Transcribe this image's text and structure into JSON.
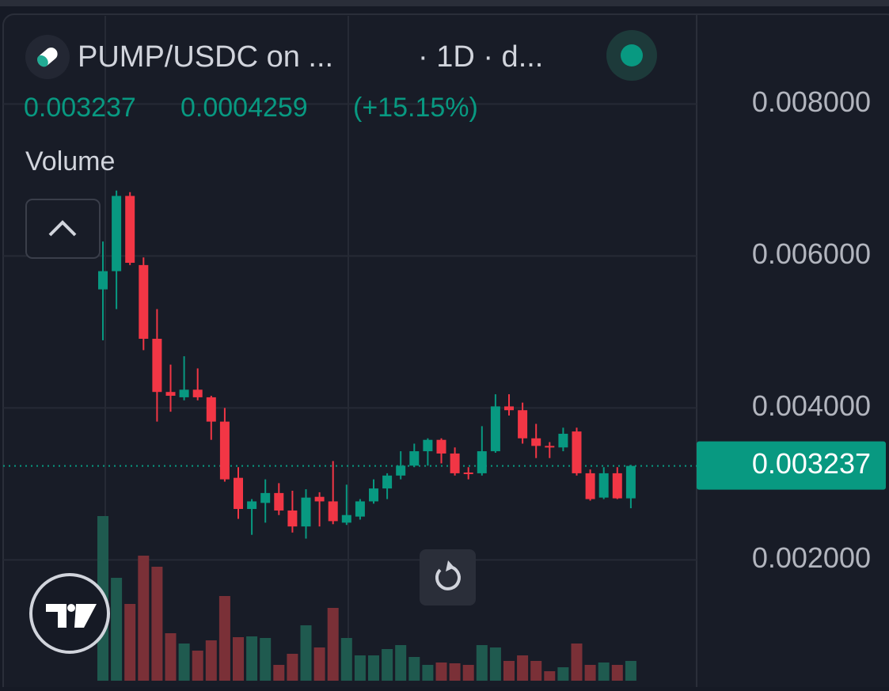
{
  "chart_data": {
    "type": "candlestick",
    "title": "PUMP/USDC on ...",
    "interval": "· 1D · d...",
    "change": 0.0004259,
    "change_percent": "(+15.15%)",
    "volume_label": "Volume",
    "categories": [
      null,
      null,
      null,
      null,
      null,
      null,
      null,
      null,
      null,
      null,
      null,
      null,
      null,
      null,
      null,
      null,
      null,
      null,
      null,
      null,
      null,
      null,
      null,
      null,
      null,
      null,
      null,
      null,
      null,
      null,
      null,
      null,
      null,
      null,
      null,
      null,
      null,
      null,
      null,
      null
    ],
    "open": [
      0.00556,
      0.0058,
      0.00679,
      0.00588,
      0.00491,
      0.00421,
      0.00414,
      0.00424,
      0.00414,
      0.00382,
      0.00308,
      0.00267,
      0.00275,
      0.00288,
      0.00265,
      0.00244,
      0.00283,
      0.00277,
      0.00249,
      0.00257,
      0.00277,
      0.00294,
      0.00311,
      0.00324,
      0.00343,
      0.00358,
      0.0034,
      0.00315,
      0.00314,
      0.00343,
      0.00402,
      0.00397,
      0.0036,
      0.0035,
      0.00348,
      0.00369,
      0.00314,
      0.00282,
      0.00314,
      0.00281
    ],
    "high": [
      0.00619,
      0.00686,
      0.00684,
      0.00598,
      0.0053,
      0.00457,
      0.00468,
      0.00452,
      0.00416,
      0.004,
      0.00322,
      0.0028,
      0.00306,
      0.00301,
      0.00291,
      0.00293,
      0.00289,
      0.0033,
      0.00299,
      0.0028,
      0.00306,
      0.00314,
      0.00343,
      0.00353,
      0.0036,
      0.0036,
      0.00348,
      0.00322,
      0.00376,
      0.00418,
      0.00418,
      0.00407,
      0.00379,
      0.00355,
      0.00374,
      0.00374,
      0.00319,
      0.00322,
      0.00322,
      0.00325
    ],
    "low": [
      0.00489,
      0.0053,
      0.00588,
      0.00476,
      0.00382,
      0.00395,
      0.0041,
      0.0041,
      0.00358,
      0.00303,
      0.00254,
      0.00233,
      0.00249,
      0.00259,
      0.00236,
      0.00228,
      0.00244,
      0.00247,
      0.00246,
      0.00253,
      0.00274,
      0.0028,
      0.00306,
      0.00322,
      0.00324,
      0.00327,
      0.00311,
      0.00306,
      0.00311,
      0.00341,
      0.0039,
      0.00353,
      0.00334,
      0.00334,
      0.00343,
      0.00311,
      0.00278,
      0.0028,
      0.0028,
      0.00268
    ],
    "close": [
      0.0058,
      0.00679,
      0.00591,
      0.00491,
      0.00421,
      0.00416,
      0.00424,
      0.00414,
      0.00382,
      0.00306,
      0.00267,
      0.00277,
      0.00288,
      0.00265,
      0.00244,
      0.00282,
      0.00277,
      0.00251,
      0.00259,
      0.00277,
      0.00294,
      0.00311,
      0.00324,
      0.00343,
      0.00358,
      0.0034,
      0.00314,
      0.00313,
      0.00343,
      0.00402,
      0.00397,
      0.0036,
      0.0035,
      0.00348,
      0.00366,
      0.00314,
      0.0028,
      0.00314,
      0.00281,
      0.003237
    ],
    "volume": [
      208,
      130,
      97,
      158,
      144,
      60,
      47,
      38,
      51,
      107,
      55,
      56,
      54,
      20,
      34,
      70,
      42,
      92,
      54,
      32,
      32,
      40,
      45,
      30,
      20,
      23,
      22,
      20,
      45,
      42,
      25,
      32,
      25,
      12,
      17,
      47,
      20,
      23,
      20,
      25
    ],
    "up_color": "#089981",
    "down_color": "#f23645",
    "up_volume_color": "#1f5a4f",
    "down_volume_color": "#7a3037",
    "ylim": [
      0.00041,
      0.00916
    ],
    "yticks": [
      {
        "value": 0.002,
        "label": "0.002000"
      },
      {
        "value": 0.004,
        "label": "0.004000"
      },
      {
        "value": 0.006,
        "label": "0.006000"
      },
      {
        "value": 0.008,
        "label": "0.008000"
      }
    ],
    "grid": true
  }
}
